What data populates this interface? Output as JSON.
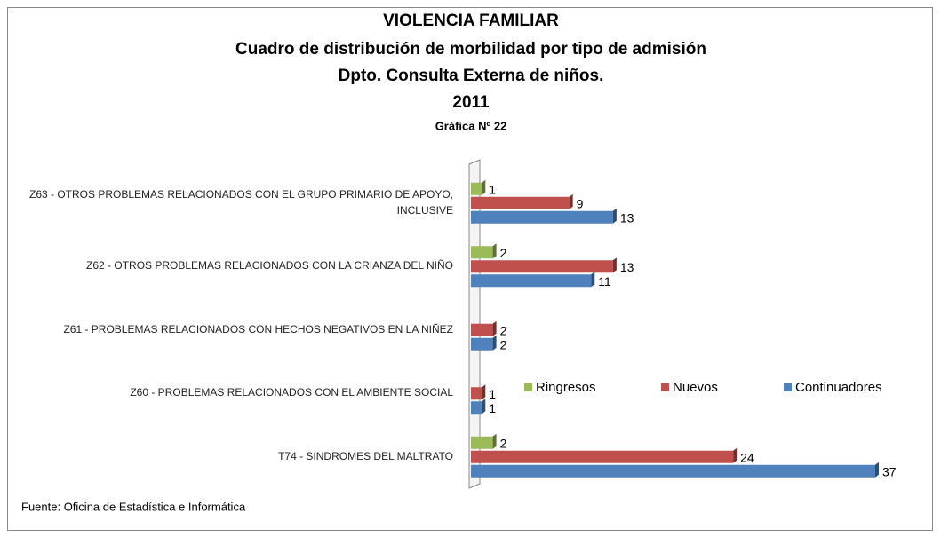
{
  "chart_data": {
    "type": "bar",
    "orientation": "horizontal",
    "title": "VIOLENCIA FAMILIAR",
    "subtitle": [
      "Cuadro de distribución de morbilidad por tipo de admisión",
      "Dpto. Consulta Externa de niños.",
      "2011"
    ],
    "caption": "Gráfica Nº 22",
    "source": "Fuente: Oficina de Estadística e Informática",
    "categories": [
      "Z63 - OTROS PROBLEMAS RELACIONADOS CON EL GRUPO PRIMARIO DE APOYO, INCLUSIVE",
      "Z62 - OTROS PROBLEMAS RELACIONADOS CON LA CRIANZA DEL NIÑO",
      "Z61 - PROBLEMAS RELACIONADOS CON HECHOS NEGATIVOS EN LA NIÑEZ",
      "Z60 - PROBLEMAS RELACIONADOS CON EL AMBIENTE SOCIAL",
      "T74 - SINDROMES DEL MALTRATO"
    ],
    "series": [
      {
        "name": "Ringresos",
        "color": "#9bbb59",
        "values": [
          1,
          2,
          null,
          null,
          2
        ]
      },
      {
        "name": "Nuevos",
        "color": "#c0504d",
        "values": [
          9,
          13,
          2,
          1,
          24
        ]
      },
      {
        "name": "Continuadores",
        "color": "#4f81bd",
        "values": [
          13,
          11,
          2,
          1,
          37
        ]
      }
    ]
  }
}
